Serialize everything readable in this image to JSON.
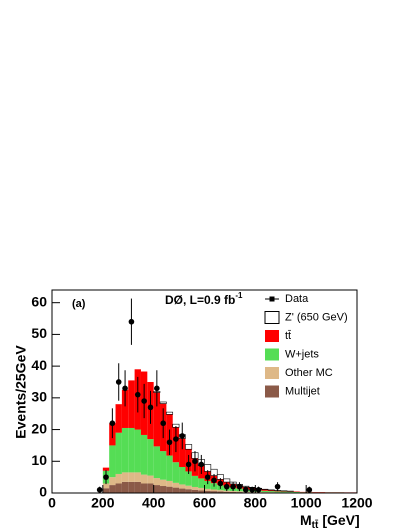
{
  "chart_data": {
    "type": "stacked_histogram",
    "ylabel": "Events/25GeV",
    "xlabel": {
      "main": "M",
      "sub": "tt̄",
      "unit": "[GeV]"
    },
    "panel_label": "(a)",
    "annotation": {
      "text": "DØ,  L=0.9 fb",
      "sup": "-1"
    },
    "xlim": [
      0,
      1200
    ],
    "xticks": [
      0,
      200,
      400,
      600,
      800,
      1000,
      1200
    ],
    "ylim": [
      0,
      64
    ],
    "yticks": [
      0,
      10,
      20,
      30,
      40,
      50,
      60
    ],
    "grid": false,
    "legend": "upper right",
    "bins": [
      200,
      225,
      250,
      275,
      300,
      325,
      350,
      375,
      400,
      425,
      450,
      475,
      500,
      525,
      550,
      575,
      600,
      625,
      650,
      675,
      700,
      725,
      750,
      775,
      800,
      825,
      850,
      875,
      900,
      925,
      950,
      975,
      1000,
      1025,
      1050,
      1075,
      1100,
      1125,
      1150,
      1175,
      1200
    ],
    "series": [
      {
        "name": "Multijet",
        "color": "#8b5a48",
        "values": [
          1.5,
          2.5,
          3,
          3.5,
          3.5,
          3.5,
          3,
          3,
          2.5,
          2.2,
          2,
          1.7,
          1.4,
          1.2,
          1,
          0.8,
          0.7,
          0.6,
          0.5,
          0.4,
          0.35,
          0.3,
          0.25,
          0.2,
          0.2,
          0.15,
          0.15,
          0.1,
          0.1,
          0.1,
          0.1,
          0.05,
          0.05,
          0.05,
          0.05,
          0.05,
          0.05,
          0.05,
          0.05,
          0.05
        ]
      },
      {
        "name": "Other MC",
        "color": "#deb887",
        "values": [
          1.5,
          2.5,
          3,
          3,
          3,
          3,
          2.8,
          2.5,
          2.2,
          2,
          1.8,
          1.5,
          1.3,
          1.1,
          0.9,
          0.8,
          0.6,
          0.5,
          0.4,
          0.35,
          0.3,
          0.25,
          0.2,
          0.2,
          0.15,
          0.15,
          0.1,
          0.1,
          0.1,
          0.1,
          0.05,
          0.05,
          0.05,
          0.05,
          0.05,
          0.05,
          0.05,
          0.05,
          0.05,
          0.05
        ]
      },
      {
        "name": "W+jets",
        "color": "#55dd55",
        "values": [
          4,
          10,
          13,
          14,
          14,
          13.5,
          12.5,
          11.5,
          10,
          9,
          8,
          6.5,
          5.5,
          4.5,
          3.5,
          3,
          2.5,
          2,
          1.6,
          1.3,
          1.1,
          0.9,
          0.7,
          0.6,
          0.5,
          0.4,
          0.35,
          0.3,
          0.25,
          0.2,
          0.2,
          0.15,
          0.15,
          0.1,
          0.1,
          0.1,
          0.1,
          0.1,
          0.05,
          0.05
        ]
      },
      {
        "name": "tt̄",
        "color": "#ff0000",
        "values": [
          1,
          7,
          9,
          12,
          15,
          19,
          20,
          18,
          17,
          15,
          13,
          11,
          9,
          7,
          5.5,
          4,
          3,
          2.4,
          1.8,
          1.4,
          1.1,
          0.9,
          0.7,
          0.6,
          0.5,
          0.4,
          0.3,
          0.25,
          0.2,
          0.15,
          0.15,
          0.1,
          0.1,
          0.1,
          0.1,
          0.05,
          0.05,
          0.05,
          0.05,
          0.05
        ]
      },
      {
        "name": "Z' (650 GeV)",
        "color": "#ffffff",
        "values": [
          0,
          0,
          0,
          0,
          0,
          0,
          0,
          0,
          0.3,
          0.5,
          0.7,
          1,
          1.2,
          1.5,
          1.8,
          2,
          2.2,
          2,
          1.5,
          1,
          0.6,
          0.4,
          0.3,
          0.2,
          0.15,
          0.1,
          0.1,
          0.05,
          0.05,
          0.05,
          0,
          0,
          0,
          0,
          0,
          0,
          0,
          0,
          0,
          0
        ]
      }
    ],
    "data": {
      "name": "Data",
      "color": "#000000",
      "x": [
        187.5,
        212.5,
        237.5,
        262.5,
        287.5,
        312.5,
        337.5,
        362.5,
        387.5,
        412.5,
        437.5,
        462.5,
        487.5,
        512.5,
        537.5,
        562.5,
        587.5,
        612.5,
        637.5,
        662.5,
        687.5,
        712.5,
        737.5,
        762.5,
        787.5,
        812.5,
        887.5,
        1012.5
      ],
      "values": [
        1,
        5,
        22,
        35,
        33,
        54,
        31,
        29,
        27,
        33,
        22,
        16,
        17,
        18,
        9,
        10,
        9,
        5,
        4,
        3,
        2,
        2,
        2,
        1,
        1,
        1,
        2,
        1
      ],
      "errors": [
        1,
        2.2,
        4.7,
        5.9,
        5.7,
        7.3,
        5.6,
        5.4,
        5.2,
        5.7,
        4.7,
        4,
        4.1,
        4.2,
        3,
        3.2,
        3,
        2.2,
        2,
        1.7,
        1.4,
        1.4,
        1.4,
        1,
        1,
        1,
        1.4,
        1
      ]
    }
  }
}
